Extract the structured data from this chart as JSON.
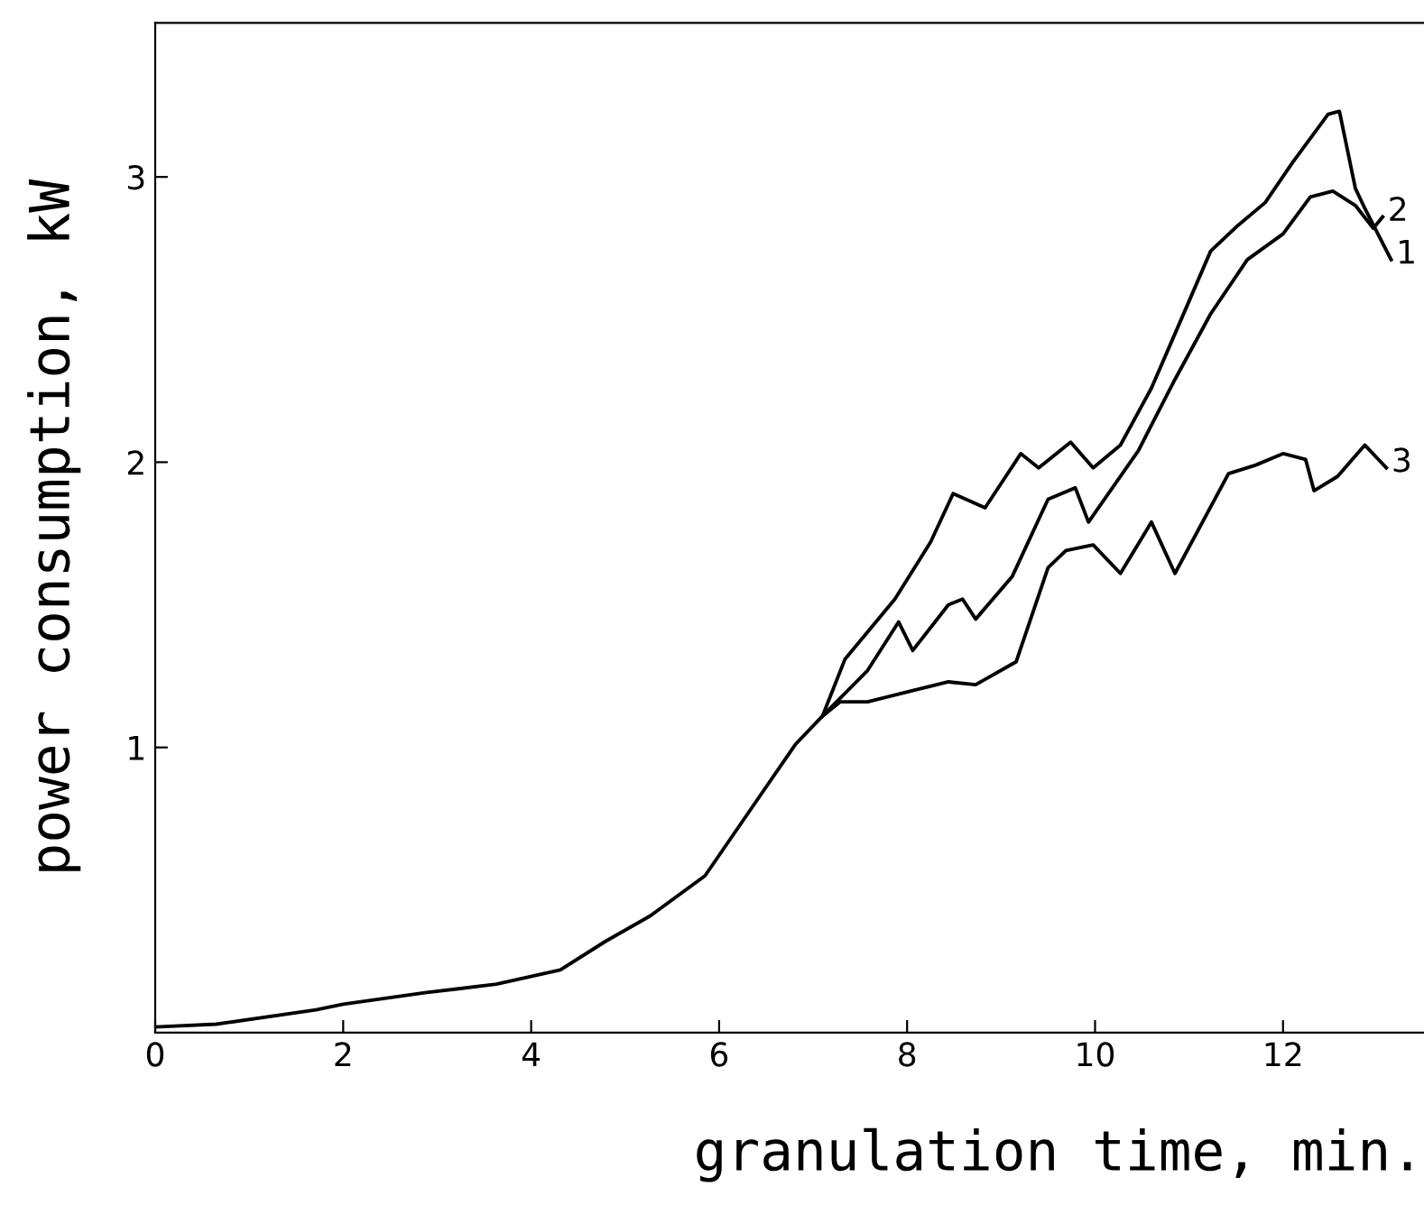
{
  "chart_data": {
    "type": "line",
    "xlabel": "granulation time, min.",
    "ylabel": "power consumption, kW",
    "xlim": [
      0,
      13.5
    ],
    "ylim": [
      0,
      3.54
    ],
    "xticks": [
      0,
      2,
      4,
      6,
      8,
      10,
      12
    ],
    "yticks": [
      1,
      2,
      3
    ],
    "grid": false,
    "legend": false,
    "marker": "none",
    "line_style": "solid",
    "series": [
      {
        "name": "1",
        "color": "#000000",
        "x": [
          0,
          0.65,
          1.71,
          2.0,
          2.87,
          3.63,
          4.31,
          4.79,
          5.27,
          5.85,
          6.33,
          6.81,
          7.1,
          7.34,
          7.87,
          8.25,
          8.49,
          8.83,
          9.21,
          9.4,
          9.74,
          9.98,
          10.27,
          10.6,
          10.85,
          11.23,
          11.52,
          11.81,
          12.1,
          12.48,
          12.6,
          12.77,
          12.87,
          13.15
        ],
        "values": [
          0.02,
          0.03,
          0.08,
          0.1,
          0.14,
          0.17,
          0.22,
          0.32,
          0.41,
          0.55,
          0.78,
          1.01,
          1.11,
          1.31,
          1.52,
          1.72,
          1.89,
          1.84,
          2.03,
          1.98,
          2.07,
          1.98,
          2.06,
          2.26,
          2.45,
          2.74,
          2.83,
          2.91,
          3.05,
          3.22,
          3.23,
          2.96,
          2.89,
          2.71
        ]
      },
      {
        "name": "2",
        "color": "#000000",
        "x": [
          7.1,
          7.58,
          7.91,
          8.06,
          8.44,
          8.59,
          8.73,
          9.12,
          9.5,
          9.79,
          9.93,
          10.46,
          10.85,
          11.23,
          11.62,
          12.0,
          12.29,
          12.53,
          12.77,
          12.96,
          13.06
        ],
        "values": [
          1.11,
          1.27,
          1.44,
          1.34,
          1.5,
          1.52,
          1.45,
          1.6,
          1.87,
          1.91,
          1.79,
          2.04,
          2.29,
          2.52,
          2.71,
          2.8,
          2.93,
          2.95,
          2.9,
          2.82,
          2.86
        ]
      },
      {
        "name": "3",
        "color": "#000000",
        "x": [
          7.1,
          7.29,
          7.58,
          8.44,
          8.73,
          9.16,
          9.5,
          9.69,
          9.98,
          10.27,
          10.6,
          10.85,
          11.42,
          11.71,
          12.0,
          12.24,
          12.33,
          12.58,
          12.87,
          13.1
        ],
        "values": [
          1.11,
          1.16,
          1.16,
          1.23,
          1.22,
          1.3,
          1.63,
          1.69,
          1.71,
          1.61,
          1.79,
          1.61,
          1.96,
          1.99,
          2.03,
          2.01,
          1.9,
          1.95,
          2.06,
          1.98
        ]
      }
    ]
  }
}
